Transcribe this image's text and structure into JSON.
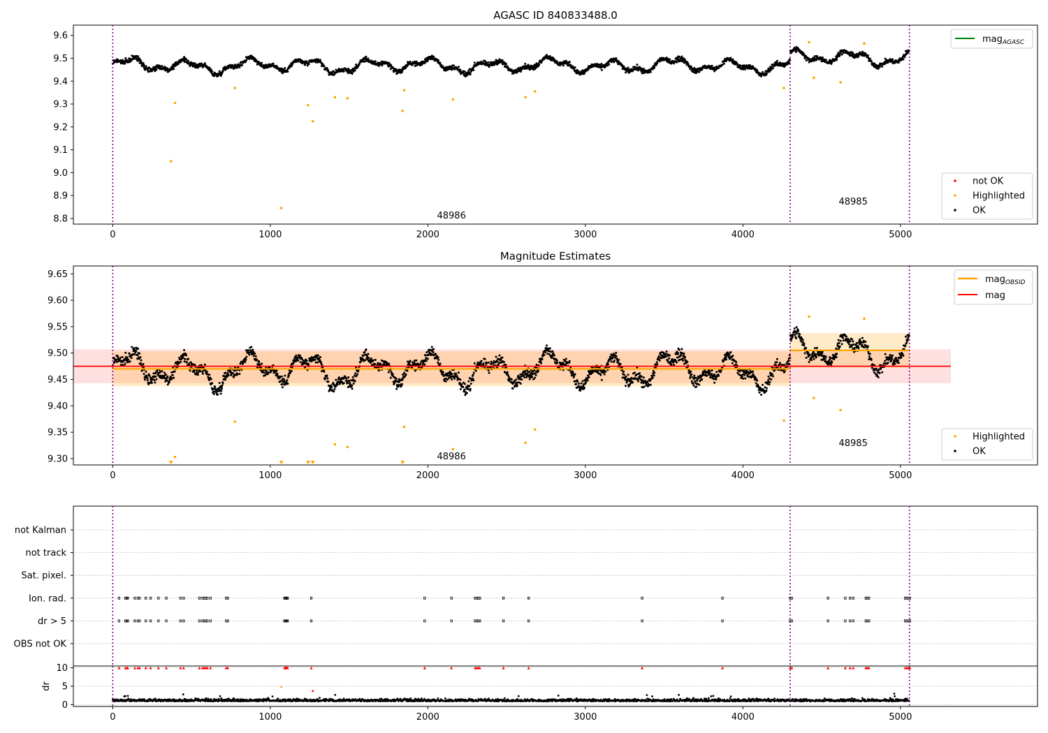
{
  "chart_data": [
    {
      "type": "scatter",
      "title": "AGASC ID 840833488.0",
      "xlabel": "",
      "ylabel": "",
      "xlim": [
        -250,
        5870
      ],
      "ylim": [
        8.775,
        9.645
      ],
      "xticks": [
        0,
        1000,
        2000,
        3000,
        4000,
        5000
      ],
      "yticks": [
        8.8,
        8.9,
        9.0,
        9.1,
        9.2,
        9.3,
        9.4,
        9.5,
        9.6
      ],
      "obsid_boundaries": [
        0,
        4300,
        5057
      ],
      "obsid_labels": [
        {
          "text": "48986",
          "x": 2150,
          "y": 8.815
        },
        {
          "text": "48985",
          "x": 4700,
          "y": 8.875
        }
      ],
      "series": [
        {
          "name": "not OK",
          "color": "#ff0000",
          "points": []
        },
        {
          "name": "Highlighted",
          "color": "#ffa500",
          "points": [
            [
              370,
              9.05
            ],
            [
              395,
              9.305
            ],
            [
              775,
              9.37
            ],
            [
              1070,
              8.845
            ],
            [
              1240,
              9.295
            ],
            [
              1270,
              9.225
            ],
            [
              1410,
              9.33
            ],
            [
              1490,
              9.325
            ],
            [
              1840,
              9.27
            ],
            [
              1850,
              9.36
            ],
            [
              2160,
              9.32
            ],
            [
              2620,
              9.33
            ],
            [
              2680,
              9.355
            ],
            [
              4260,
              9.37
            ],
            [
              4420,
              9.57
            ],
            [
              4450,
              9.415
            ],
            [
              4620,
              9.395
            ],
            [
              4770,
              9.565
            ]
          ]
        },
        {
          "name": "OK",
          "color": "#000000",
          "points": [],
          "mean": 9.475,
          "spread": 0.03
        }
      ],
      "lines": [
        {
          "name": "mag_AGASC",
          "label_main": "mag",
          "label_sub": "AGASC",
          "color": "#008000"
        }
      ],
      "legends": {
        "upper": {
          "placement": "top-right",
          "entries": [
            "mag_AGASC"
          ]
        },
        "lower": {
          "placement": "bottom-right",
          "entries": [
            "not OK",
            "Highlighted",
            "OK"
          ]
        }
      },
      "grid": false
    },
    {
      "type": "scatter",
      "title": "Magnitude Estimates",
      "xlabel": "",
      "ylabel": "",
      "xlim": [
        -250,
        5870
      ],
      "ylim": [
        9.288,
        9.665
      ],
      "xticks": [
        0,
        1000,
        2000,
        3000,
        4000,
        5000
      ],
      "yticks": [
        9.3,
        9.35,
        9.4,
        9.45,
        9.5,
        9.55,
        9.6,
        9.65
      ],
      "obsid_boundaries": [
        0,
        4300,
        5057
      ],
      "obsid_labels": [
        {
          "text": "48986",
          "x": 2150,
          "y": 9.305
        },
        {
          "text": "48985",
          "x": 4700,
          "y": 9.33
        }
      ],
      "series": [
        {
          "name": "Highlighted",
          "color": "#ffa500",
          "points": [
            [
              395,
              9.303
            ],
            [
              775,
              9.37
            ],
            [
              1410,
              9.327
            ],
            [
              1490,
              9.322
            ],
            [
              1850,
              9.36
            ],
            [
              2160,
              9.318
            ],
            [
              2620,
              9.33
            ],
            [
              2680,
              9.355
            ],
            [
              4260,
              9.372
            ],
            [
              4420,
              9.569
            ],
            [
              4450,
              9.415
            ],
            [
              4620,
              9.392
            ],
            [
              4770,
              9.565
            ]
          ]
        },
        {
          "name": "OK",
          "color": "#000000",
          "points": [],
          "mean": 9.475,
          "spread": 0.03
        }
      ],
      "clipped_below": [
        370,
        1070,
        1240,
        1270,
        1840
      ],
      "lines": [
        {
          "name": "mag_OBSID",
          "label_main": "mag",
          "label_sub": "OBSID",
          "color": "#ffa500",
          "segments": [
            {
              "x0": 0,
              "x1": 4300,
              "y": 9.47
            },
            {
              "x0": 4300,
              "x1": 5057,
              "y": 9.505
            }
          ],
          "bands": [
            {
              "x0": 0,
              "x1": 4300,
              "y0": 9.437,
              "y1": 9.503
            },
            {
              "x0": 4300,
              "x1": 5057,
              "y0": 9.472,
              "y1": 9.538
            }
          ]
        },
        {
          "name": "mag",
          "label_main": "mag",
          "label_sub": "",
          "color": "#ff0000",
          "x0": -250,
          "x1": 5320,
          "y": 9.475,
          "band": [
            9.443,
            9.507
          ]
        }
      ],
      "legends": {
        "upper": {
          "placement": "top-right",
          "entries": [
            "mag_OBSID",
            "mag"
          ]
        },
        "lower": {
          "placement": "bottom-right",
          "entries": [
            "Highlighted",
            "OK"
          ]
        }
      },
      "grid": false
    },
    {
      "type": "scatter",
      "title": "",
      "xlabel": "",
      "ylabel": "",
      "xlim": [
        -250,
        5870
      ],
      "flag_rows": [
        "not Kalman",
        "not track",
        "Sat. pixel.",
        "Ion. rad.",
        "dr > 5",
        "OBS not OK"
      ],
      "flag_events": {
        "Ion. rad.": [
          40,
          80,
          90,
          95,
          140,
          160,
          170,
          210,
          240,
          290,
          340,
          430,
          450,
          550,
          570,
          580,
          590,
          600,
          620,
          720,
          730,
          1090,
          1095,
          1100,
          1105,
          1110,
          1260,
          1980,
          2150,
          2300,
          2310,
          2320,
          2330,
          2480,
          2640,
          3360,
          3870,
          4300,
          4310,
          4540,
          4650,
          4680,
          4700,
          4780,
          4790,
          4800,
          5030,
          5040,
          5050,
          5060
        ],
        "dr > 5": [
          40,
          80,
          90,
          95,
          140,
          160,
          170,
          210,
          240,
          290,
          340,
          430,
          450,
          550,
          570,
          580,
          590,
          600,
          620,
          720,
          730,
          1090,
          1095,
          1100,
          1105,
          1110,
          1260,
          1980,
          2150,
          2300,
          2310,
          2320,
          2330,
          2480,
          2640,
          3360,
          3870,
          4300,
          4310,
          4540,
          4650,
          4680,
          4700,
          4780,
          4790,
          4800,
          5030,
          5040,
          5050,
          5060
        ]
      },
      "obsid_boundaries": [
        0,
        4300,
        5057
      ],
      "grid": true
    },
    {
      "type": "scatter",
      "title": "",
      "xlabel": "",
      "ylabel": "dr",
      "xlim": [
        -250,
        5870
      ],
      "ylim": [
        -0.5,
        10.5
      ],
      "xticks": [
        0,
        1000,
        2000,
        3000,
        4000,
        5000
      ],
      "yticks": [
        0,
        5,
        10
      ],
      "obsid_boundaries": [
        0,
        4300,
        5057
      ],
      "series": [
        {
          "name": "dr OK",
          "color": "#000000",
          "points": [],
          "typical": 1.0
        },
        {
          "name": "dr clipped",
          "color": "#ff0000",
          "clipped_at": 10,
          "xs": [
            40,
            80,
            90,
            95,
            140,
            160,
            170,
            210,
            240,
            290,
            340,
            430,
            450,
            550,
            570,
            580,
            590,
            600,
            620,
            720,
            730,
            1090,
            1095,
            1100,
            1105,
            1110,
            1260,
            1980,
            2150,
            2300,
            2310,
            2320,
            2330,
            2480,
            2640,
            3360,
            3870,
            4300,
            4310,
            4540,
            4650,
            4680,
            4700,
            4780,
            4790,
            4800,
            5030,
            5040,
            5050,
            5060
          ]
        },
        {
          "name": "dr highlighted",
          "color": "#ffa500",
          "points": [
            [
              1070,
              4.8
            ]
          ]
        },
        {
          "name": "dr not OK",
          "color": "#ff0000",
          "points": [
            [
              1270,
              3.7
            ]
          ]
        }
      ],
      "grid": true
    }
  ]
}
